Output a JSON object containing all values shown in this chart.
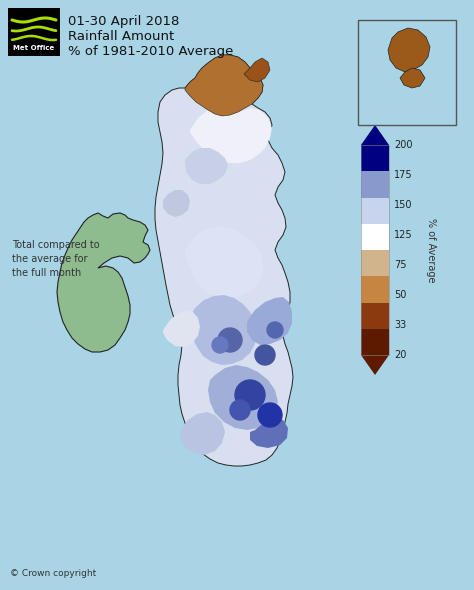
{
  "title_line1": "01-30 April 2018",
  "title_line2": "Rainfall Amount",
  "title_line3": "% of 1981-2010 Average",
  "background_color": "#a8d4e6",
  "colorbar_label": "% of Average",
  "colorbar_ticks": [
    20,
    33,
    50,
    75,
    125,
    150,
    175,
    200
  ],
  "colorbar_colors": [
    "#5e1a00",
    "#8b3a0f",
    "#c68642",
    "#d2b48c",
    "#ffffff",
    "#c8d4ee",
    "#8899cc",
    "#000080"
  ],
  "footnote": "Total compared to\nthe average for\nthe full month",
  "copyright": "© Crown copyright",
  "ireland_color": "#8fbc8f",
  "border_color": "#222222",
  "logo_bg": "#000000",
  "logo_text_color": "#ffffff",
  "logo_wave_color": "#aadd00",
  "title_color": "#111111",
  "footnote_color": "#333333"
}
